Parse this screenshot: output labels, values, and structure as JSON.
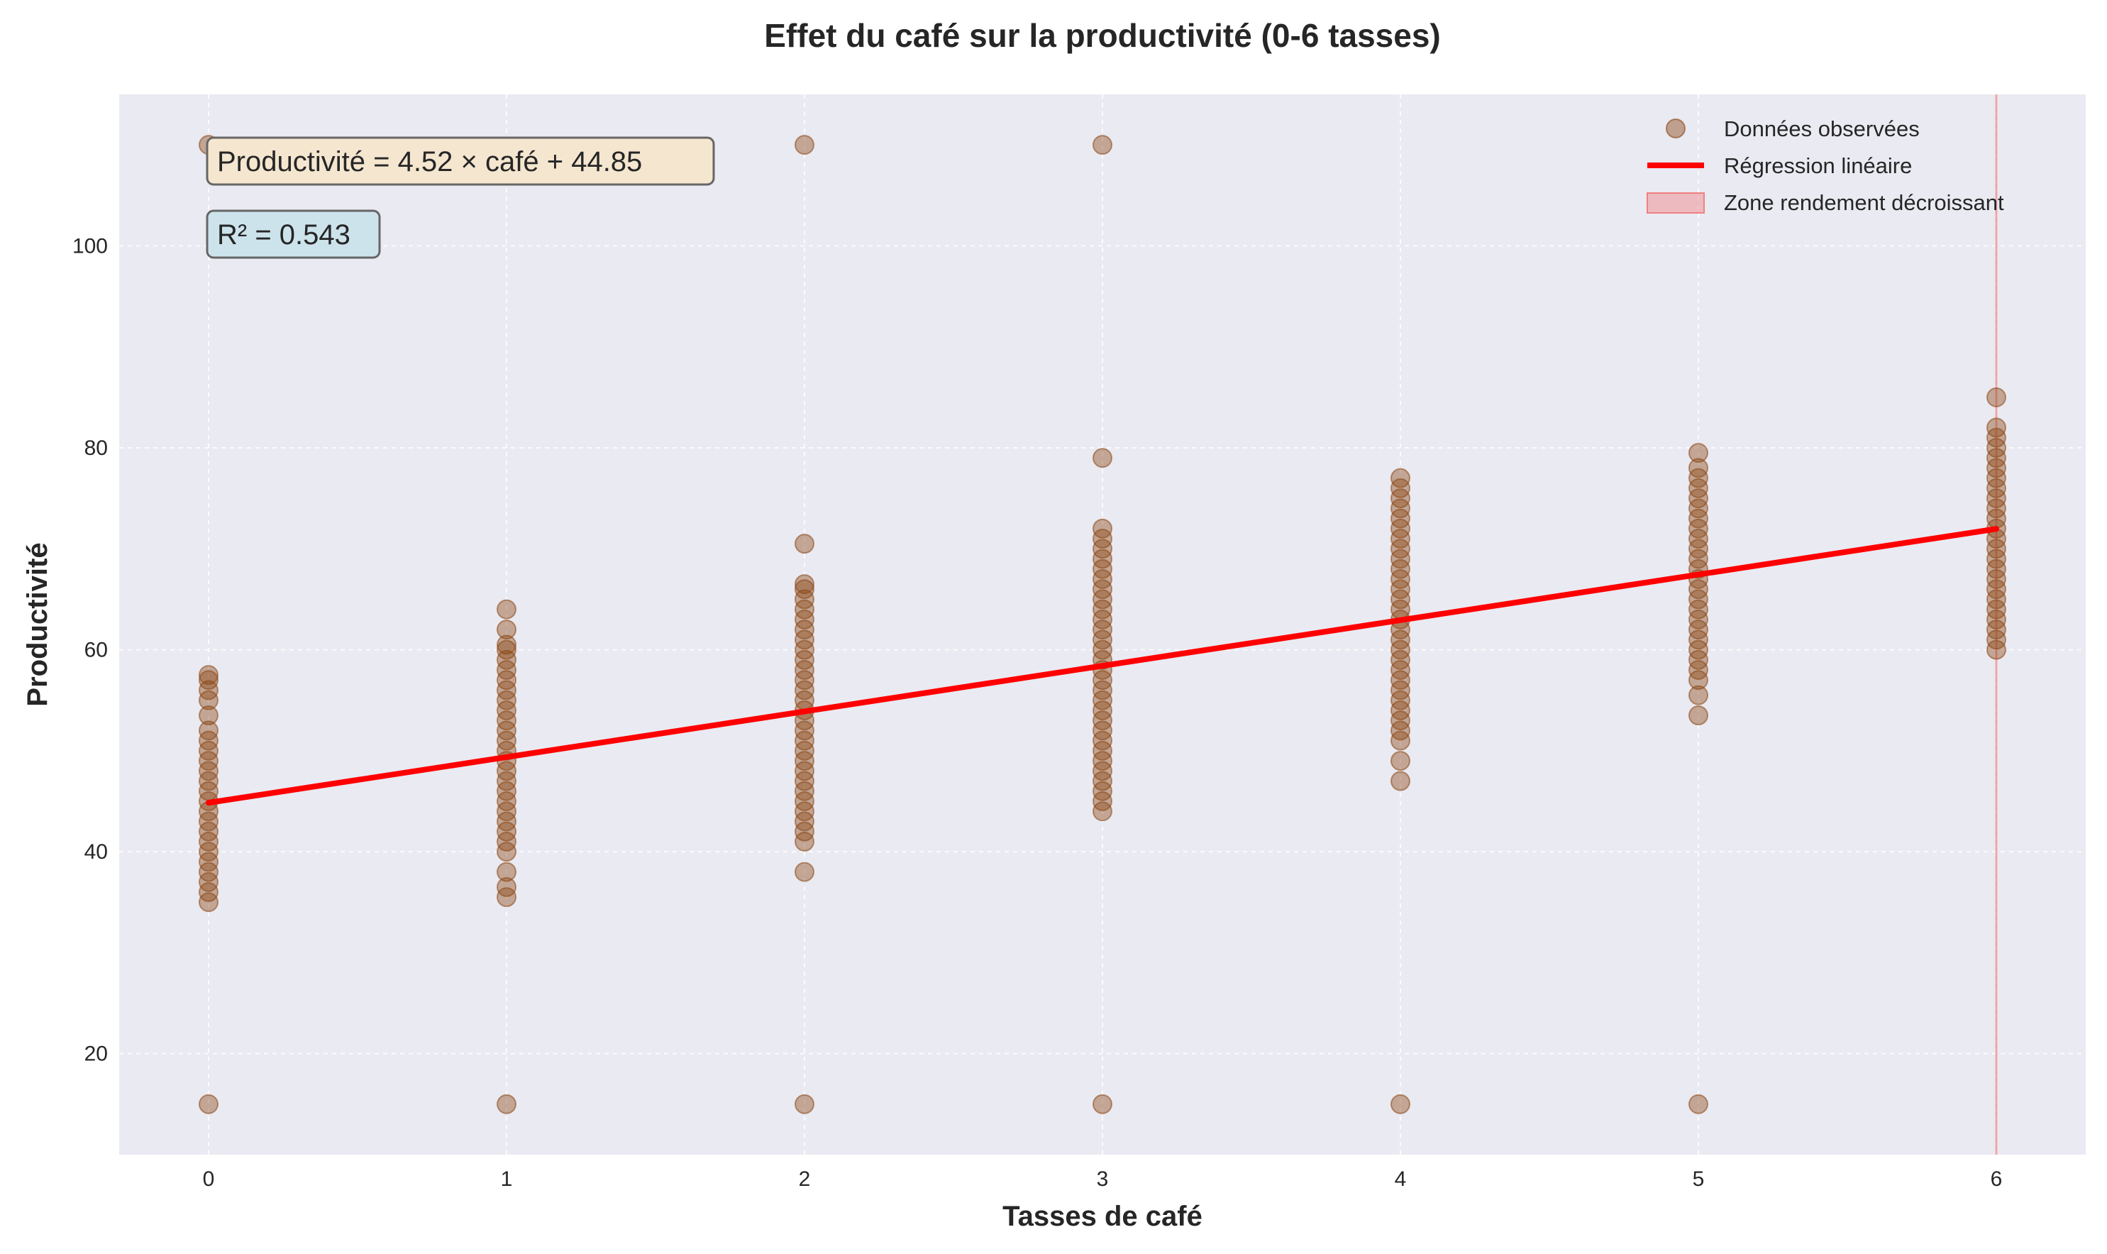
{
  "chart_data": {
    "type": "scatter",
    "title": "Effet du café sur la productivité (0-6 tasses)",
    "xlabel": "Tasses de café",
    "ylabel": "Productivité",
    "xlim": [
      -0.3,
      6.3
    ],
    "ylim": [
      10,
      115
    ],
    "x_ticks": [
      0,
      1,
      2,
      3,
      4,
      5,
      6
    ],
    "y_ticks": [
      20,
      40,
      60,
      80,
      100
    ],
    "grid": true,
    "legend_position": "top-right",
    "legend": [
      "Données observées",
      "Régression linéaire",
      "Zone rendement décroissant"
    ],
    "series": [
      {
        "name": "Données observées",
        "kind": "scatter",
        "color": "#8B4513",
        "points": [
          [
            0,
            35
          ],
          [
            0,
            36
          ],
          [
            0,
            37
          ],
          [
            0,
            38
          ],
          [
            0,
            39
          ],
          [
            0,
            40
          ],
          [
            0,
            41
          ],
          [
            0,
            42
          ],
          [
            0,
            43
          ],
          [
            0,
            44
          ],
          [
            0,
            45
          ],
          [
            0,
            46
          ],
          [
            0,
            47
          ],
          [
            0,
            48
          ],
          [
            0,
            49
          ],
          [
            0,
            50
          ],
          [
            0,
            51
          ],
          [
            0,
            52
          ],
          [
            0,
            53.5
          ],
          [
            0,
            55
          ],
          [
            0,
            56
          ],
          [
            0,
            57
          ],
          [
            0,
            57.5
          ],
          [
            0,
            110
          ],
          [
            0,
            15
          ],
          [
            1,
            35.5
          ],
          [
            1,
            36.5
          ],
          [
            1,
            38
          ],
          [
            1,
            40
          ],
          [
            1,
            41
          ],
          [
            1,
            42
          ],
          [
            1,
            43
          ],
          [
            1,
            44
          ],
          [
            1,
            45
          ],
          [
            1,
            46
          ],
          [
            1,
            47
          ],
          [
            1,
            48
          ],
          [
            1,
            49
          ],
          [
            1,
            50
          ],
          [
            1,
            51
          ],
          [
            1,
            52
          ],
          [
            1,
            53
          ],
          [
            1,
            54
          ],
          [
            1,
            55
          ],
          [
            1,
            56
          ],
          [
            1,
            57
          ],
          [
            1,
            58
          ],
          [
            1,
            59
          ],
          [
            1,
            60
          ],
          [
            1,
            60.5
          ],
          [
            1,
            62
          ],
          [
            1,
            64
          ],
          [
            1,
            15
          ],
          [
            2,
            38
          ],
          [
            2,
            41
          ],
          [
            2,
            42
          ],
          [
            2,
            43
          ],
          [
            2,
            44
          ],
          [
            2,
            45
          ],
          [
            2,
            46
          ],
          [
            2,
            47
          ],
          [
            2,
            48
          ],
          [
            2,
            49
          ],
          [
            2,
            50
          ],
          [
            2,
            51
          ],
          [
            2,
            52
          ],
          [
            2,
            53
          ],
          [
            2,
            54
          ],
          [
            2,
            55
          ],
          [
            2,
            56
          ],
          [
            2,
            57
          ],
          [
            2,
            58
          ],
          [
            2,
            59
          ],
          [
            2,
            60
          ],
          [
            2,
            61
          ],
          [
            2,
            62
          ],
          [
            2,
            63
          ],
          [
            2,
            64
          ],
          [
            2,
            65
          ],
          [
            2,
            66
          ],
          [
            2,
            66.5
          ],
          [
            2,
            70.5
          ],
          [
            2,
            110
          ],
          [
            2,
            15
          ],
          [
            3,
            44
          ],
          [
            3,
            45
          ],
          [
            3,
            46
          ],
          [
            3,
            47
          ],
          [
            3,
            48
          ],
          [
            3,
            49
          ],
          [
            3,
            50
          ],
          [
            3,
            51
          ],
          [
            3,
            52
          ],
          [
            3,
            53
          ],
          [
            3,
            54
          ],
          [
            3,
            55
          ],
          [
            3,
            56
          ],
          [
            3,
            57
          ],
          [
            3,
            58
          ],
          [
            3,
            59
          ],
          [
            3,
            60
          ],
          [
            3,
            61
          ],
          [
            3,
            62
          ],
          [
            3,
            63
          ],
          [
            3,
            64
          ],
          [
            3,
            65
          ],
          [
            3,
            66
          ],
          [
            3,
            67
          ],
          [
            3,
            68
          ],
          [
            3,
            69
          ],
          [
            3,
            70
          ],
          [
            3,
            71
          ],
          [
            3,
            72
          ],
          [
            3,
            79
          ],
          [
            3,
            110
          ],
          [
            3,
            15
          ],
          [
            4,
            47
          ],
          [
            4,
            49
          ],
          [
            4,
            51
          ],
          [
            4,
            52
          ],
          [
            4,
            53
          ],
          [
            4,
            54
          ],
          [
            4,
            55
          ],
          [
            4,
            56
          ],
          [
            4,
            57
          ],
          [
            4,
            58
          ],
          [
            4,
            59
          ],
          [
            4,
            60
          ],
          [
            4,
            61
          ],
          [
            4,
            62
          ],
          [
            4,
            63
          ],
          [
            4,
            64
          ],
          [
            4,
            65
          ],
          [
            4,
            66
          ],
          [
            4,
            67
          ],
          [
            4,
            68
          ],
          [
            4,
            69
          ],
          [
            4,
            70
          ],
          [
            4,
            71
          ],
          [
            4,
            72
          ],
          [
            4,
            73
          ],
          [
            4,
            74
          ],
          [
            4,
            75
          ],
          [
            4,
            76
          ],
          [
            4,
            77
          ],
          [
            4,
            15
          ],
          [
            5,
            53.5
          ],
          [
            5,
            55.5
          ],
          [
            5,
            57
          ],
          [
            5,
            58
          ],
          [
            5,
            59
          ],
          [
            5,
            60
          ],
          [
            5,
            61
          ],
          [
            5,
            62
          ],
          [
            5,
            63
          ],
          [
            5,
            64
          ],
          [
            5,
            65
          ],
          [
            5,
            66
          ],
          [
            5,
            67
          ],
          [
            5,
            68
          ],
          [
            5,
            69
          ],
          [
            5,
            70
          ],
          [
            5,
            71
          ],
          [
            5,
            72
          ],
          [
            5,
            73
          ],
          [
            5,
            74
          ],
          [
            5,
            75
          ],
          [
            5,
            76
          ],
          [
            5,
            77
          ],
          [
            5,
            78
          ],
          [
            5,
            79.5
          ],
          [
            5,
            15
          ],
          [
            6,
            60
          ],
          [
            6,
            61
          ],
          [
            6,
            62
          ],
          [
            6,
            63
          ],
          [
            6,
            64
          ],
          [
            6,
            65
          ],
          [
            6,
            66
          ],
          [
            6,
            67
          ],
          [
            6,
            68
          ],
          [
            6,
            69
          ],
          [
            6,
            70
          ],
          [
            6,
            71
          ],
          [
            6,
            72
          ],
          [
            6,
            73
          ],
          [
            6,
            74
          ],
          [
            6,
            75
          ],
          [
            6,
            76
          ],
          [
            6,
            77
          ],
          [
            6,
            78
          ],
          [
            6,
            79
          ],
          [
            6,
            80
          ],
          [
            6,
            81
          ],
          [
            6,
            82
          ],
          [
            6,
            85
          ]
        ]
      },
      {
        "name": "Régression linéaire",
        "kind": "line",
        "color": "#FF0000",
        "slope": 4.52,
        "intercept": 44.85,
        "x": [
          0,
          6
        ],
        "y": [
          44.85,
          71.97
        ]
      },
      {
        "name": "Zone rendement décroissant",
        "kind": "vspan",
        "color": "#F08080",
        "x": [
          6,
          6
        ]
      }
    ],
    "annotations": [
      {
        "text": "Productivité = 4.52 × café + 44.85",
        "box_color": "#F5E6D0"
      },
      {
        "text": "R² = 0.543",
        "box_color": "#CDE3EC"
      }
    ]
  }
}
